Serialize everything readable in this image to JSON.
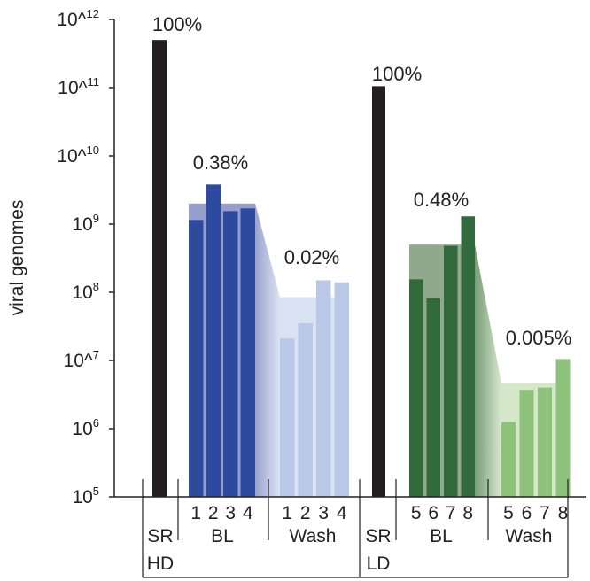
{
  "chart_data": {
    "type": "bar",
    "title": "",
    "ylabel": "viral genomes",
    "yscale": "log",
    "ylim": [
      100000,
      1000000000000
    ],
    "y_ticks": [
      {
        "value": 100000,
        "base": "10",
        "exp": "5"
      },
      {
        "value": 1000000,
        "base": "10",
        "exp": "6"
      },
      {
        "value": 10000000,
        "base": "10^",
        "exp": "7"
      },
      {
        "value": 100000000,
        "base": "10",
        "exp": "8"
      },
      {
        "value": 1000000000,
        "base": "10",
        "exp": "9"
      },
      {
        "value": 10000000000,
        "base": "10^",
        "exp": "10"
      },
      {
        "value": 100000000000,
        "base": "10^",
        "exp": "11"
      },
      {
        "value": 1000000000000,
        "base": "10^",
        "exp": "12"
      }
    ],
    "colors": {
      "sr": "#231f20",
      "bl_hd": "#2e4a9e",
      "bl_hd_mean": "#8f98c8",
      "wash_hd": "#b9c8e6",
      "wash_hd_mean": "#d9e2f3",
      "bl_ld": "#336a3c",
      "bl_ld_mean": "#8aa386",
      "wash_ld": "#8ec27a",
      "wash_ld_mean": "#d4e7c8"
    },
    "groups": [
      {
        "id": "sr-hd",
        "label": "SR",
        "sublabel": "HD",
        "kind": "sr",
        "percent": "100%",
        "bars": [
          {
            "value": 500000000000
          }
        ]
      },
      {
        "id": "bl-hd",
        "label": "BL",
        "kind": "bl_hd",
        "percent": "0.38%",
        "mean": 2000000000,
        "bars": [
          {
            "label": "1",
            "value": 1150000000
          },
          {
            "label": "2",
            "value": 3800000000
          },
          {
            "label": "3",
            "value": 1550000000
          },
          {
            "label": "4",
            "value": 1700000000
          }
        ]
      },
      {
        "id": "wash-hd",
        "label": "Wash",
        "kind": "wash_hd",
        "percent": "0.02%",
        "mean": 85000000,
        "bars": [
          {
            "label": "1",
            "value": 21000000
          },
          {
            "label": "2",
            "value": 35000000
          },
          {
            "label": "3",
            "value": 150000000
          },
          {
            "label": "4",
            "value": 140000000
          }
        ]
      },
      {
        "id": "sr-ld",
        "label": "SR",
        "sublabel": "LD",
        "kind": "sr",
        "percent": "100%",
        "bars": [
          {
            "value": 105000000000
          }
        ]
      },
      {
        "id": "bl-ld",
        "label": "BL",
        "kind": "bl_ld",
        "percent": "0.48%",
        "mean": 500000000,
        "bars": [
          {
            "label": "5",
            "value": 155000000
          },
          {
            "label": "6",
            "value": 82000000
          },
          {
            "label": "7",
            "value": 480000000
          },
          {
            "label": "8",
            "value": 1300000000
          }
        ]
      },
      {
        "id": "wash-ld",
        "label": "Wash",
        "kind": "wash_ld",
        "percent": "0.005%",
        "mean": 4700000,
        "bars": [
          {
            "label": "5",
            "value": 1250000
          },
          {
            "label": "6",
            "value": 3700000
          },
          {
            "label": "7",
            "value": 4000000
          },
          {
            "label": "8",
            "value": 10500000
          }
        ]
      }
    ]
  }
}
